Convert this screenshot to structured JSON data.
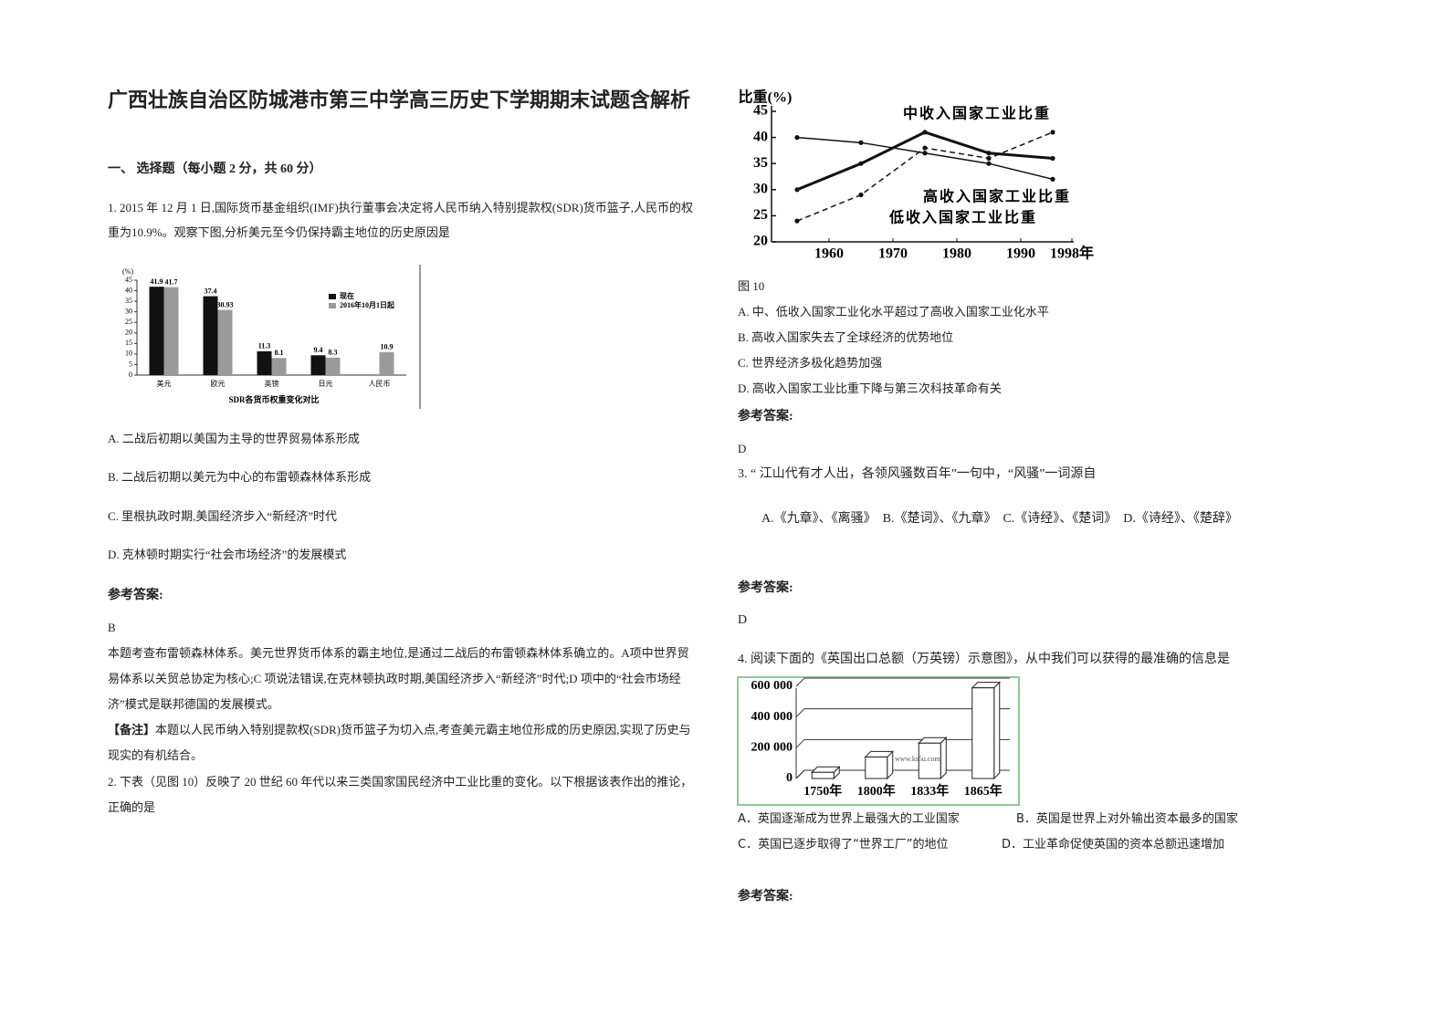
{
  "title": "广西壮族自治区防城港市第三中学高三历史下学期期末试题含解析",
  "section": "一、 选择题（每小题 2 分，共 60 分）",
  "q1": {
    "stem": "1. 2015 年 12 月 1 日,国际货币基金组织(IMF)执行董事会决定将人民币纳入特别提款权(SDR)货币篮子,人民币的权重为10.9%。观察下图,分析美元至今仍保持霸主地位的历史原因是",
    "options": [
      "A. 二战后初期以美国为主导的世界贸易体系形成",
      "B. 二战后初期以美元为中心的布雷顿森林体系形成",
      "C. 里根执政时期,美国经济步入“新经济”时代",
      "D. 克林顿时期实行“社会市场经济”的发展模式"
    ],
    "answer_label": "参考答案:",
    "answer": "B",
    "explanation": "本题考查布雷顿森林体系。美元世界货币体系的霸主地位,是通过二战后的布雷顿森林体系确立的。A项中世界贸易体系以关贸总协定为核心;C 项说法错误,在克林顿执政时期,美国经济步入“新经济”时代;D 项中的“社会市场经济”模式是联邦德国的发展模式。",
    "note_tag": "【备注】",
    "note": "本题以人民币纳入特别提款权(SDR)货币篮子为切入点,考查美元霸主地位形成的历史原因,实现了历史与现实的有机结合。"
  },
  "q2": {
    "stem": "2. 下表（见图 10）反映了 20 世纪 60 年代以来三类国家国民经济中工业比重的变化。以下根据该表作出的推论，正确的是",
    "caption": "图 10",
    "options": [
      "A. 中、低收入国家工业化水平超过了高收入国家工业化水平",
      "B. 高收入国家失去了全球经济的优势地位",
      "C. 世界经济多极化趋势加强",
      "D. 高收入国家工业比重下降与第三次科技革命有关"
    ],
    "answer_label": "参考答案:",
    "answer": "D"
  },
  "q3": {
    "stem": "3. “ 江山代有才人出，各领风骚数百年”一句中，“风骚”一词源自",
    "options": "A.《九章》、《离骚》　B.《楚词》、《九章》　C.《诗经》、《楚词》　D.《诗经》、《楚辞》",
    "answer_label": "参考答案:",
    "answer": "D"
  },
  "q4": {
    "stem": "4. 阅读下面的《英国出口总额（万英镑）示意图》，从中我们可以获得的最准确的信息是",
    "options": [
      "A．英国逐渐成为世界上最强大的工业国家",
      "B．英国是世界上对外输出资本最多的国家",
      "C．英国已逐步取得了“世界工厂”的地位",
      "D．工业革命促使英国的资本总额迅速增加"
    ],
    "answer_label": "参考答案:"
  },
  "chart_data": [
    {
      "type": "bar",
      "ylabel": "(%)",
      "caption": "SDR各货币权重变化对比",
      "categories": [
        "美元",
        "欧元",
        "英镑",
        "日元",
        "人民币"
      ],
      "series": [
        {
          "name": "现在",
          "color": "#111111",
          "values": [
            41.9,
            37.4,
            11.3,
            9.4,
            null
          ]
        },
        {
          "name": "2016年10月1日起",
          "color": "#9a9a9a",
          "values": [
            41.7,
            30.93,
            8.1,
            8.3,
            10.9
          ]
        }
      ],
      "ylim": [
        0,
        45
      ],
      "yticks": [
        0,
        5,
        10,
        15,
        20,
        25,
        30,
        35,
        40,
        45
      ]
    },
    {
      "type": "line",
      "ylabel": "比重(%)",
      "x": [
        1955,
        1965,
        1975,
        1985,
        1995
      ],
      "series": [
        {
          "name": "中收入国家工业比重",
          "color": "#111111",
          "style": "solid",
          "width": 3,
          "values": [
            30,
            35,
            41,
            37,
            36
          ]
        },
        {
          "name": "高收入国家工业比重",
          "color": "#111111",
          "style": "solid",
          "width": 1.5,
          "values": [
            40,
            39,
            37,
            35,
            32
          ]
        },
        {
          "name": "低收入国家工业比重",
          "color": "#111111",
          "style": "dashed",
          "width": 1.5,
          "values": [
            24,
            29,
            38,
            36,
            41
          ]
        }
      ],
      "xlim": [
        1951,
        2000
      ],
      "xticks": [
        1960,
        1970,
        1980,
        1990,
        {
          "value": 1998,
          "label": "1998年"
        }
      ],
      "ylim": [
        20,
        45
      ],
      "yticks": [
        20,
        25,
        30,
        35,
        40,
        45
      ]
    },
    {
      "type": "bar3d",
      "watermark": "www.ks5u.com",
      "categories": [
        "1750年",
        "1800年",
        "1833年",
        "1865年"
      ],
      "values": [
        40000,
        140000,
        230000,
        590000
      ],
      "color": "#ffffff",
      "border": "#90c890",
      "ylim": [
        0,
        600000
      ],
      "yticks": [
        0,
        {
          "value": 200000,
          "label": "200 000"
        },
        {
          "value": 400000,
          "label": "400 000"
        },
        {
          "value": 600000,
          "label": "600 000"
        }
      ]
    }
  ]
}
